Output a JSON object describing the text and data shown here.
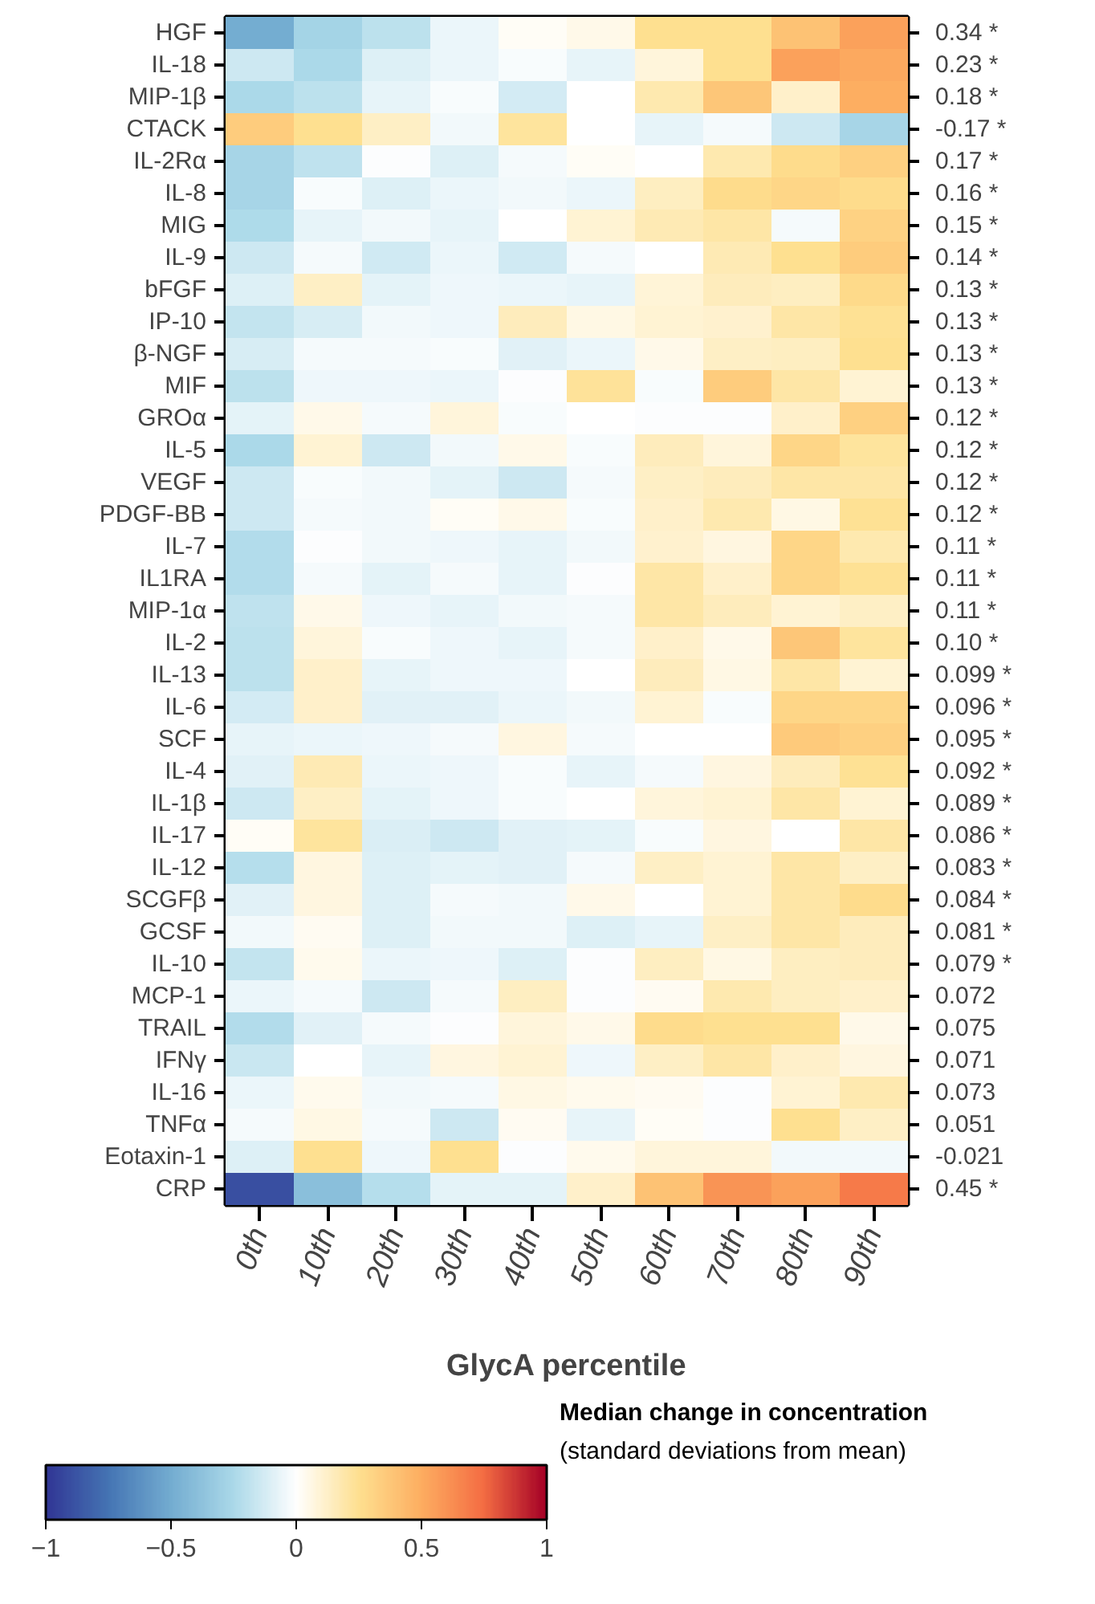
{
  "chart_data": {
    "type": "heatmap",
    "categories": [
      "0th",
      "10th",
      "20th",
      "30th",
      "40th",
      "50th",
      "60th",
      "70th",
      "80th",
      "90th"
    ],
    "y_categories": [
      "HGF",
      "IL-18",
      "MIP-1β",
      "CTACK",
      "IL-2Rα",
      "IL-8",
      "MIG",
      "IL-9",
      "bFGF",
      "IP-10",
      "β-NGF",
      "MIF",
      "GROα",
      "IL-5",
      "VEGF",
      "PDGF-BB",
      "IL-7",
      "IL1RA",
      "MIP-1α",
      "IL-2",
      "IL-13",
      "IL-6",
      "SCF",
      "IL-4",
      "IL-1β",
      "IL-17",
      "IL-12",
      "SCGFβ",
      "GCSF",
      "IL-10",
      "MCP-1",
      "TRAIL",
      "IFNγ",
      "IL-16",
      "TNFα",
      "Eotaxin-1",
      "CRP"
    ],
    "y2_categories": [
      "0.34 *",
      "0.23 *",
      "0.18 *",
      "-0.17 *",
      "0.17 *",
      "0.16 *",
      "0.15 *",
      "0.14 *",
      "0.13 *",
      "0.13 *",
      "0.13 *",
      "0.13 *",
      "0.12 *",
      "0.12 *",
      "0.12 *",
      "0.12 *",
      "0.11 *",
      "0.11 *",
      "0.11 *",
      "0.10 *",
      "0.099 *",
      "0.096 *",
      "0.095 *",
      "0.092 *",
      "0.089 *",
      "0.086 *",
      "0.083 *",
      "0.084 *",
      "0.081 *",
      "0.079 *",
      "0.072",
      "0.075",
      "0.071",
      "0.073",
      "0.051",
      "-0.021",
      "0.45 *"
    ],
    "cells": [
      [
        -0.5,
        -0.28,
        -0.2,
        -0.06,
        0.02,
        0.05,
        0.25,
        0.25,
        0.4,
        0.55
      ],
      [
        -0.15,
        -0.25,
        -0.1,
        -0.06,
        -0.02,
        -0.07,
        0.08,
        0.25,
        0.55,
        0.52
      ],
      [
        -0.25,
        -0.2,
        -0.07,
        -0.02,
        -0.13,
        0,
        0.18,
        0.38,
        0.12,
        0.5
      ],
      [
        0.35,
        0.25,
        0.13,
        -0.04,
        0.22,
        0,
        -0.07,
        -0.03,
        -0.15,
        -0.27
      ],
      [
        -0.27,
        -0.19,
        -0.01,
        -0.1,
        -0.03,
        0.02,
        0,
        0.18,
        0.27,
        0.33
      ],
      [
        -0.27,
        -0.02,
        -0.1,
        -0.06,
        -0.04,
        -0.06,
        0.14,
        0.27,
        0.3,
        0.27
      ],
      [
        -0.24,
        -0.07,
        -0.04,
        -0.07,
        0,
        0.1,
        0.17,
        0.2,
        -0.03,
        0.32
      ],
      [
        -0.15,
        -0.03,
        -0.14,
        -0.06,
        -0.14,
        -0.03,
        0,
        0.17,
        0.25,
        0.35
      ],
      [
        -0.1,
        0.13,
        -0.08,
        -0.05,
        -0.06,
        -0.07,
        0.09,
        0.15,
        0.14,
        0.28
      ],
      [
        -0.18,
        -0.12,
        -0.04,
        -0.05,
        0.15,
        0.06,
        0.1,
        0.11,
        0.2,
        0.24
      ],
      [
        -0.12,
        -0.03,
        -0.03,
        -0.02,
        -0.09,
        -0.06,
        0.05,
        0.13,
        0.14,
        0.25
      ],
      [
        -0.2,
        -0.05,
        -0.05,
        -0.06,
        -0.01,
        0.23,
        -0.02,
        0.35,
        0.2,
        0.1
      ],
      [
        -0.08,
        0.05,
        -0.03,
        0.08,
        -0.02,
        0,
        -0.01,
        -0.01,
        0.12,
        0.33
      ],
      [
        -0.25,
        0.1,
        -0.15,
        -0.04,
        0.05,
        -0.02,
        0.15,
        0.08,
        0.3,
        0.22
      ],
      [
        -0.15,
        -0.02,
        -0.04,
        -0.08,
        -0.15,
        -0.03,
        0.13,
        0.15,
        0.2,
        0.2
      ],
      [
        -0.15,
        -0.03,
        -0.04,
        0.02,
        0.05,
        -0.02,
        0.12,
        0.18,
        0.06,
        0.24
      ],
      [
        -0.23,
        -0.01,
        -0.04,
        -0.05,
        -0.07,
        -0.04,
        0.11,
        0.07,
        0.3,
        0.18
      ],
      [
        -0.23,
        -0.03,
        -0.08,
        -0.03,
        -0.07,
        -0.01,
        0.2,
        0.12,
        0.3,
        0.24
      ],
      [
        -0.19,
        0.05,
        -0.05,
        -0.07,
        -0.04,
        -0.03,
        0.2,
        0.15,
        0.1,
        0.13
      ],
      [
        -0.2,
        0.08,
        -0.02,
        -0.05,
        -0.07,
        -0.03,
        0.12,
        0.05,
        0.38,
        0.22
      ],
      [
        -0.2,
        0.12,
        -0.07,
        -0.05,
        -0.05,
        0,
        0.15,
        0.06,
        0.2,
        0.1
      ],
      [
        -0.13,
        0.12,
        -0.09,
        -0.09,
        -0.06,
        -0.04,
        0.1,
        -0.02,
        0.3,
        0.3
      ],
      [
        -0.07,
        -0.06,
        -0.05,
        -0.03,
        0.07,
        -0.03,
        0,
        0,
        0.36,
        0.33
      ],
      [
        -0.09,
        0.17,
        -0.06,
        -0.05,
        -0.02,
        -0.07,
        -0.03,
        0.07,
        0.15,
        0.24
      ],
      [
        -0.15,
        0.13,
        -0.08,
        -0.05,
        -0.02,
        0,
        0.08,
        0.1,
        0.2,
        0.1
      ],
      [
        0.02,
        0.22,
        -0.11,
        -0.15,
        -0.09,
        -0.08,
        -0.02,
        0.07,
        0,
        0.2
      ],
      [
        -0.22,
        0.07,
        -0.1,
        -0.08,
        -0.09,
        -0.03,
        0.13,
        0.1,
        0.2,
        0.13
      ],
      [
        -0.09,
        0.07,
        -0.1,
        -0.03,
        -0.04,
        0.05,
        0,
        0.1,
        0.2,
        0.27
      ],
      [
        -0.04,
        0.03,
        -0.1,
        -0.04,
        -0.04,
        -0.1,
        -0.07,
        0.13,
        0.2,
        0.15
      ],
      [
        -0.18,
        0.04,
        -0.06,
        -0.05,
        -0.1,
        -0.01,
        0.14,
        0.06,
        0.14,
        0.15
      ],
      [
        -0.06,
        -0.03,
        -0.15,
        -0.03,
        0.14,
        -0.01,
        0.03,
        0.18,
        0.14,
        0.12
      ],
      [
        -0.23,
        -0.09,
        -0.03,
        -0.01,
        0.08,
        0.05,
        0.27,
        0.25,
        0.25,
        0.05
      ],
      [
        -0.16,
        0,
        -0.07,
        0.07,
        0.1,
        -0.05,
        0.13,
        0.2,
        0.12,
        0.07
      ],
      [
        -0.06,
        0.04,
        -0.04,
        -0.03,
        0.06,
        0.04,
        0.03,
        -0.01,
        0.1,
        0.18
      ],
      [
        -0.03,
        0.06,
        -0.03,
        -0.15,
        0.03,
        -0.07,
        0.02,
        -0.01,
        0.25,
        0.13
      ],
      [
        -0.1,
        0.25,
        -0.05,
        0.25,
        -0.01,
        0.04,
        0.08,
        0.08,
        -0.04,
        -0.04
      ],
      [
        -0.9,
        -0.4,
        -0.22,
        -0.08,
        -0.08,
        0.12,
        0.4,
        0.6,
        0.55,
        0.7
      ]
    ],
    "xlabel": "GlycA percentile",
    "clim": [
      -1,
      1
    ],
    "cticks": [
      -1,
      -0.5,
      0,
      0.5,
      1
    ],
    "clabel": "Median change in concentration",
    "annotations": [
      "(standard deviations from mean)"
    ]
  }
}
